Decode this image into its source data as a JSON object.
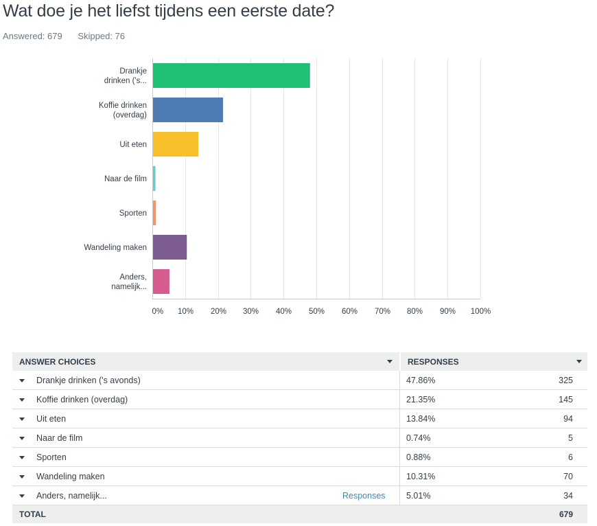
{
  "question": {
    "title": "Wat doe je het liefst tijdens een eerste date?",
    "answered": "Answered: 679",
    "skipped": "Skipped: 76"
  },
  "chart_data": {
    "type": "bar",
    "orientation": "horizontal",
    "categories": [
      "Drankje drinken ('s avonds)",
      "Koffie drinken (overdag)",
      "Uit eten",
      "Naar de film",
      "Sporten",
      "Wandeling maken",
      "Anders, namelijk..."
    ],
    "category_tick_labels": [
      [
        "Drankje",
        "drinken ('s..."
      ],
      [
        "Koffie drinken",
        "(overdag)"
      ],
      [
        "Uit eten"
      ],
      [
        "Naar de film"
      ],
      [
        "Sporten"
      ],
      [
        "Wandeling maken"
      ],
      [
        "Anders,",
        "namelijk..."
      ]
    ],
    "values": [
      47.86,
      21.35,
      13.84,
      0.74,
      0.88,
      10.31,
      5.01
    ],
    "colors": [
      "#1fbf75",
      "#507cb6",
      "#f7c02c",
      "#6bc8cd",
      "#f09469",
      "#7d5c91",
      "#d45c8e"
    ],
    "xlim": [
      0,
      100
    ],
    "x_ticks": [
      "0%",
      "10%",
      "20%",
      "30%",
      "40%",
      "50%",
      "60%",
      "70%",
      "80%",
      "90%",
      "100%"
    ],
    "grid": true
  },
  "table": {
    "header_choices": "ANSWER CHOICES",
    "header_responses": "RESPONSES",
    "rows": [
      {
        "label": "Drankje drinken ('s avonds)",
        "pct": "47.86%",
        "count": "325"
      },
      {
        "label": "Koffie drinken (overdag)",
        "pct": "21.35%",
        "count": "145"
      },
      {
        "label": "Uit eten",
        "pct": "13.84%",
        "count": "94"
      },
      {
        "label": "Naar de film",
        "pct": "0.74%",
        "count": "5"
      },
      {
        "label": "Sporten",
        "pct": "0.88%",
        "count": "6"
      },
      {
        "label": "Wandeling maken",
        "pct": "10.31%",
        "count": "70"
      },
      {
        "label": "Anders, namelijk...",
        "pct": "5.01%",
        "count": "34",
        "link": "Responses"
      }
    ],
    "total_label": "TOTAL",
    "total_count": "679"
  }
}
